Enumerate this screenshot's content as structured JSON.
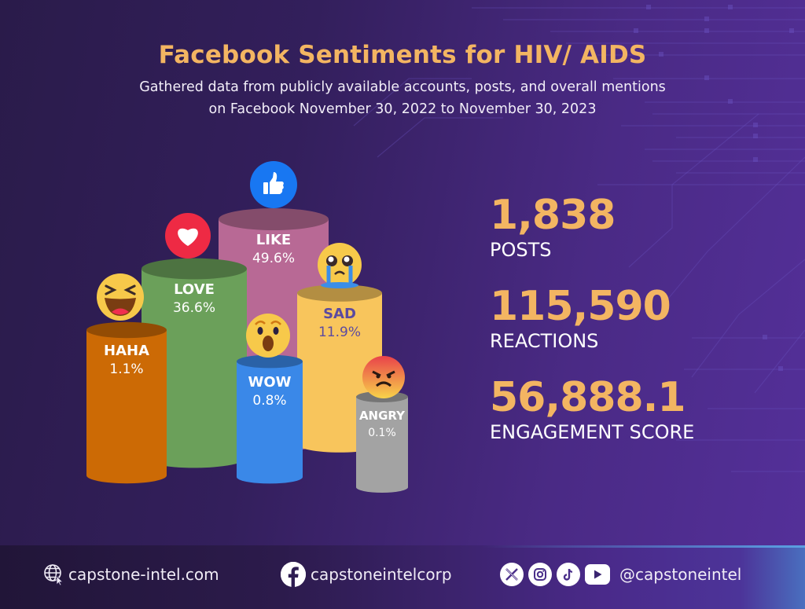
{
  "header": {
    "title": "Facebook Sentiments for HIV/ AIDS",
    "subtitle_line1": "Gathered data from publicly available accounts, posts, and overall mentions",
    "subtitle_line2": "on Facebook November 30, 2022 to November 30, 2023"
  },
  "chart_data": {
    "type": "bar",
    "title": "Facebook Sentiments for HIV/ AIDS",
    "xlabel": "",
    "ylabel": "",
    "unit": "%",
    "categories": [
      "HAHA",
      "LOVE",
      "LIKE",
      "WOW",
      "SAD",
      "ANGRY"
    ],
    "values": [
      1.1,
      36.6,
      49.6,
      0.8,
      11.9,
      0.1
    ],
    "value_labels": [
      "1.1%",
      "36.6%",
      "49.6%",
      "0.8%",
      "11.9%",
      "0.1%"
    ],
    "icons": [
      "laughing-face-icon",
      "heart-icon",
      "thumbs-up-icon",
      "surprised-face-icon",
      "crying-face-icon",
      "angry-face-icon"
    ],
    "colors": [
      "#cc6a05",
      "#6ba05a",
      "#b86995",
      "#3a88e8",
      "#f8c55c",
      "#a3a3a3"
    ],
    "label_colors": [
      "#ffffff",
      "#ffffff",
      "#ffffff",
      "#ffffff",
      "#5b4aa0",
      "#ffffff"
    ],
    "legend": "none",
    "grid": false
  },
  "stats": [
    {
      "value": "1,838",
      "label": "POSTS"
    },
    {
      "value": "115,590",
      "label": "REACTIONS"
    },
    {
      "value": "56,888.1",
      "label": "ENGAGEMENT SCORE"
    }
  ],
  "footer": {
    "website": "capstone-intel.com",
    "facebook": "capstoneintelcorp",
    "handle": "@capstoneintel",
    "icons": [
      "globe-icon",
      "facebook-icon",
      "x-icon",
      "instagram-icon",
      "tiktok-icon",
      "youtube-icon"
    ]
  },
  "colors": {
    "accent": "#f3b562",
    "background_dark": "#2a1b4a",
    "background_light": "#54309a"
  }
}
